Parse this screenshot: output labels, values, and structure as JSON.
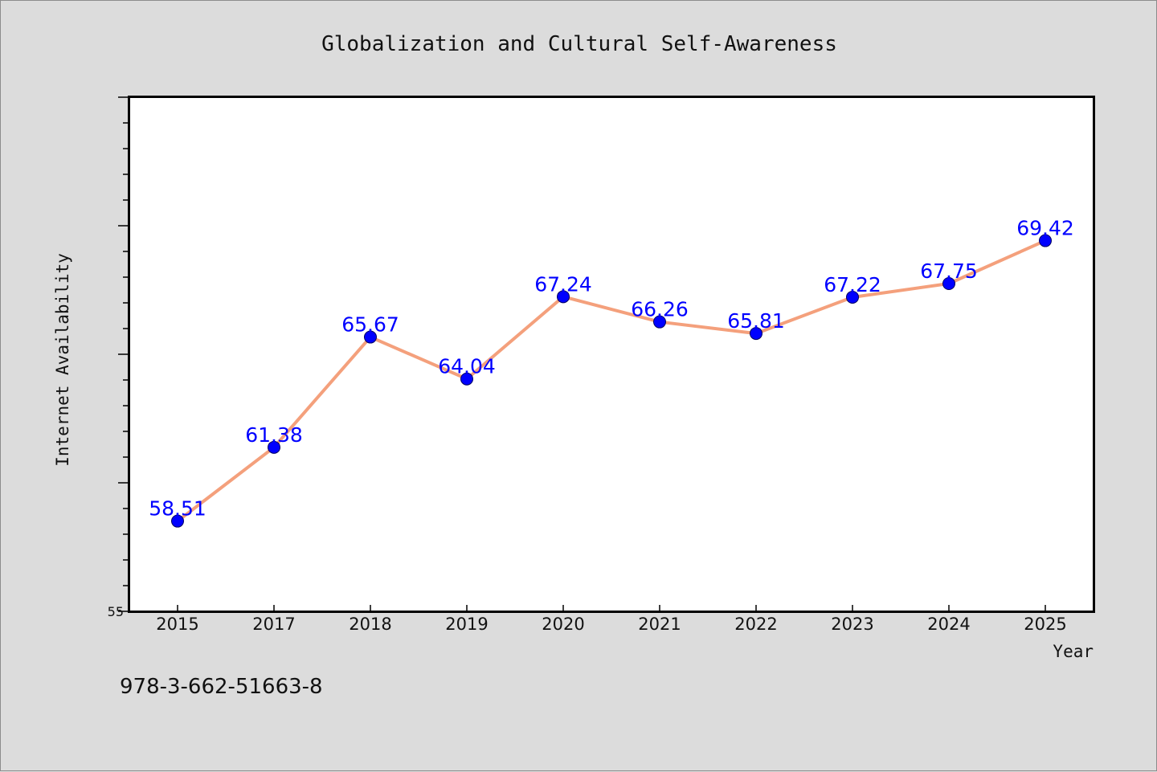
{
  "chart_data": {
    "type": "line",
    "title": "Globalization and Cultural Self-Awareness",
    "xlabel": "Year",
    "ylabel": "Internet Availability",
    "categories": [
      "2015",
      "2017",
      "2018",
      "2019",
      "2020",
      "2021",
      "2022",
      "2023",
      "2024",
      "2025"
    ],
    "values": [
      58.51,
      61.38,
      65.67,
      64.04,
      67.24,
      66.26,
      65.81,
      67.22,
      67.75,
      69.42
    ],
    "data_labels": [
      "58.51",
      "61.38",
      "65.67",
      "64.04",
      "67.24",
      "66.26",
      "65.81",
      "67.22",
      "67.75",
      "69.42"
    ],
    "ylim": [
      55,
      75
    ],
    "y_tick_labels": [
      "55"
    ],
    "y_minor_step": 1,
    "y_major_step": 5,
    "grid": false,
    "line_color": "#f4a07c",
    "marker_color": "#0000ff",
    "label_color": "#0000ff"
  },
  "footer": {
    "isbn": "978-3-662-51663-8"
  }
}
